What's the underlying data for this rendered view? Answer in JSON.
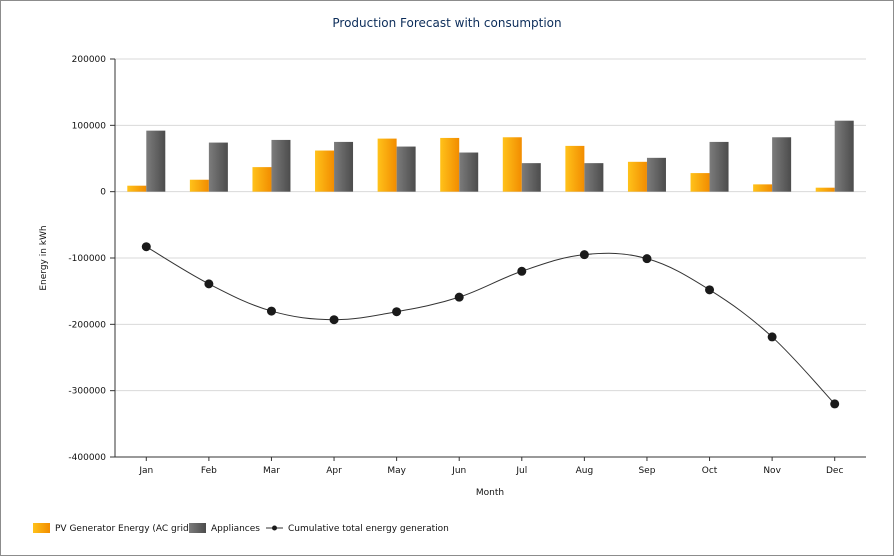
{
  "chart_data": {
    "type": "bar",
    "title": "Production Forecast with consumption",
    "xlabel": "Month",
    "ylabel": "Energy in kWh",
    "ylim": [
      -400000,
      200000
    ],
    "yticks": [
      "200000",
      "100000",
      "0",
      "-100000",
      "-200000",
      "-300000",
      "-400000"
    ],
    "grid": true,
    "legend_position": "bottom-left",
    "categories": [
      "Jan",
      "Feb",
      "Mar",
      "Apr",
      "May",
      "Jun",
      "Jul",
      "Aug",
      "Sep",
      "Oct",
      "Nov",
      "Dec"
    ],
    "series": [
      {
        "name": "PV Generator Energy (AC grid)",
        "type": "bar",
        "color": "#f7a600",
        "values": [
          9000,
          18000,
          37000,
          62000,
          80000,
          81000,
          82000,
          69000,
          45000,
          28000,
          11000,
          6000
        ]
      },
      {
        "name": "Appliances",
        "type": "bar",
        "color": "#666666",
        "values": [
          92000,
          74000,
          78000,
          75000,
          68000,
          59000,
          43000,
          43000,
          51000,
          75000,
          82000,
          107000
        ]
      },
      {
        "name": "Cumulative total energy generation",
        "type": "line",
        "color": "#1a1a1a",
        "values": [
          -83000,
          -139000,
          -180000,
          -193000,
          -181000,
          -159000,
          -120000,
          -95000,
          -101000,
          -148000,
          -219000,
          -320000
        ]
      }
    ]
  }
}
